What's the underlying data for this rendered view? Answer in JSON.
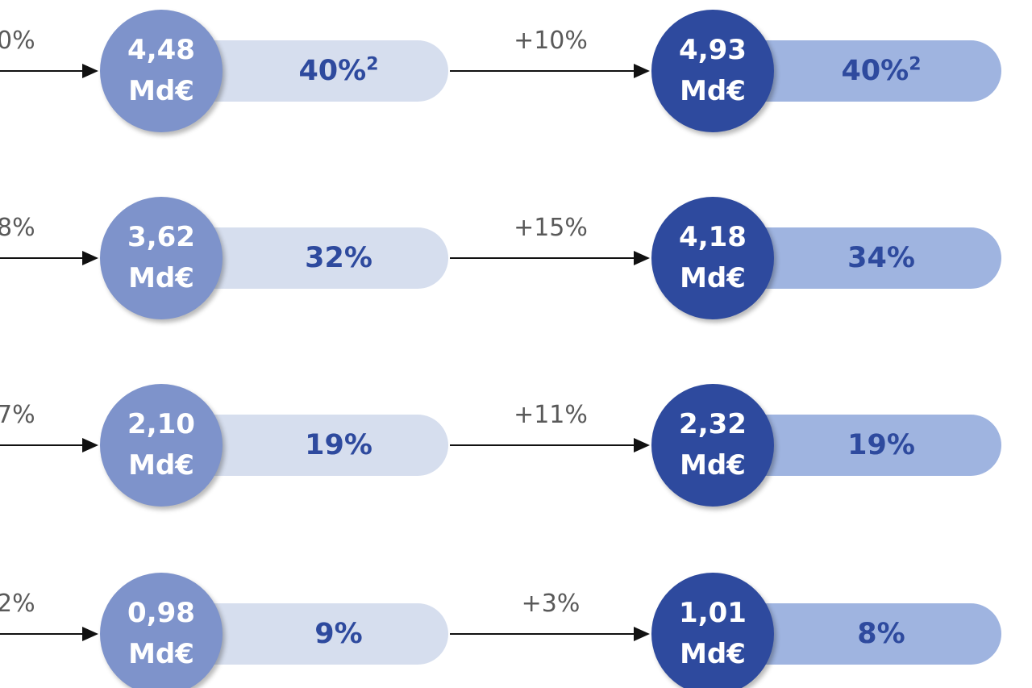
{
  "colors": {
    "circle_light": "#7e93cb",
    "circle_dark": "#2e4a9e",
    "pill_light": "#d6deee",
    "pill_dark": "#9fb4e0",
    "pill_text": "#2e4a9e",
    "growth_text": "#595959"
  },
  "rows": [
    {
      "left_growth": "0%",
      "left_value": "4,48",
      "left_unit": "Md€",
      "left_share": "40%",
      "left_share_note": "2",
      "mid_growth": "+10%",
      "right_value": "4,93",
      "right_unit": "Md€",
      "right_share": "40%",
      "right_share_note": "2"
    },
    {
      "left_growth": "8%",
      "left_value": "3,62",
      "left_unit": "Md€",
      "left_share": "32%",
      "left_share_note": "",
      "mid_growth": "+15%",
      "right_value": "4,18",
      "right_unit": "Md€",
      "right_share": "34%",
      "right_share_note": ""
    },
    {
      "left_growth": "7%",
      "left_value": "2,10",
      "left_unit": "Md€",
      "left_share": "19%",
      "left_share_note": "",
      "mid_growth": "+11%",
      "right_value": "2,32",
      "right_unit": "Md€",
      "right_share": "19%",
      "right_share_note": ""
    },
    {
      "left_growth": "2%",
      "left_value": "0,98",
      "left_unit": "Md€",
      "left_share": "9%",
      "left_share_note": "",
      "mid_growth": "+3%",
      "right_value": "1,01",
      "right_unit": "Md€",
      "right_share": "8%",
      "right_share_note": ""
    }
  ]
}
